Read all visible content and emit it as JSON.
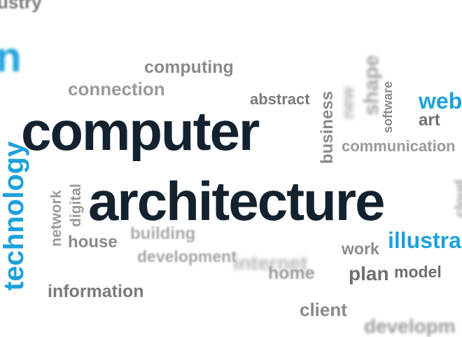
{
  "title": "computer architecture",
  "colors": {
    "dark": "#14222f",
    "blue": "#1ea1db",
    "gray": "#8a8a8a",
    "darkgray": "#5f5f5f",
    "lightgray": "#b9b9b9"
  },
  "words": {
    "computer": "computer",
    "architecture": "architecture",
    "industry": "ustry",
    "n": "n",
    "computing": "computing",
    "connection": "connection",
    "abstract": "abstract",
    "business": "business",
    "new": "new",
    "shape": "shape",
    "software": "software",
    "web": "web",
    "art": "art",
    "communication": "communication",
    "technology": "technology",
    "network": "network",
    "digital": "digital",
    "house": "house",
    "building": "building",
    "development": "development",
    "internet": "internet",
    "home": "home",
    "work": "work",
    "illustration": "illustra",
    "plan": "plan",
    "model": "model",
    "information": "information",
    "client": "client",
    "cloud": "cloud",
    "development2": "developm"
  }
}
